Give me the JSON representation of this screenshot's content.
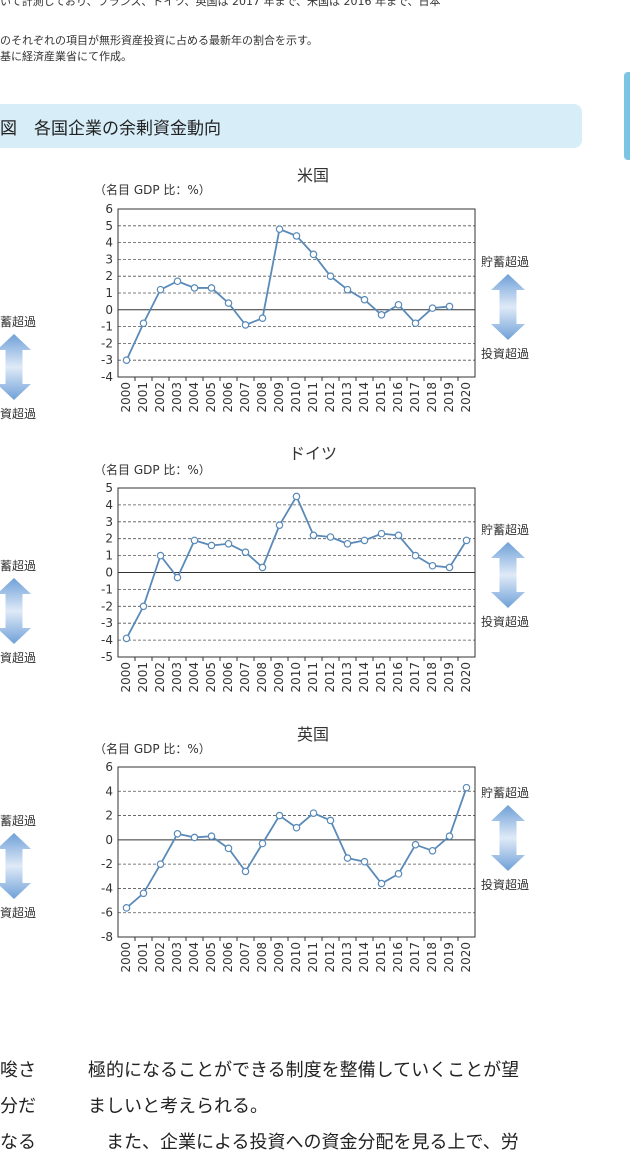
{
  "notes": {
    "line1": "いて計測しており、フランス、ドイツ、英国は 2017 年まで、米国は 2016 年まで、日本",
    "line2": "のそれぞれの項目が無形資産投資に占める最新年の割合を示す。",
    "line3": "基に経済産業省にて作成。"
  },
  "figure_caption": "図　各国企業の余剰資金動向",
  "side_labels": {
    "savings": "貯蓄超過",
    "investment": "投資超過",
    "savings_cut": "蓄超過",
    "investment_cut": "資超過"
  },
  "body_text": {
    "left1": "唆さ",
    "left2": "分だ",
    "left3": "なる",
    "right1": "極的になることができる制度を整備していくことが望",
    "right2": "ましいと考えられる。",
    "right3": "また、企業による投資への資金分配を見る上で、労"
  },
  "colors": {
    "line": "#5a8ab8",
    "arrow": "#6fa0d8",
    "caption_bg": "#d7eef8"
  },
  "chart_data": [
    {
      "type": "line",
      "title": "米国",
      "ylabel": "（名目 GDP 比：%）",
      "categories": [
        "2000",
        "2001",
        "2002",
        "2003",
        "2004",
        "2005",
        "2006",
        "2007",
        "2008",
        "2009",
        "2010",
        "2011",
        "2012",
        "2013",
        "2014",
        "2015",
        "2016",
        "2017",
        "2018",
        "2019",
        "2020"
      ],
      "values": [
        -3.0,
        -0.8,
        1.2,
        1.7,
        1.3,
        1.3,
        0.4,
        -0.9,
        -0.5,
        4.8,
        4.4,
        3.3,
        2.0,
        1.2,
        0.6,
        -0.3,
        0.3,
        -0.8,
        0.1,
        0.2,
        null
      ],
      "ylim": [
        -4,
        6
      ],
      "yticks": [
        6,
        5,
        4,
        3,
        2,
        1,
        0,
        -1,
        -2,
        -3,
        -4
      ],
      "grid": "dashed-horizontal"
    },
    {
      "type": "line",
      "title": "ドイツ",
      "ylabel": "（名目 GDP 比：%）",
      "categories": [
        "2000",
        "2001",
        "2002",
        "2003",
        "2004",
        "2005",
        "2006",
        "2007",
        "2008",
        "2009",
        "2010",
        "2011",
        "2012",
        "2013",
        "2014",
        "2015",
        "2016",
        "2017",
        "2018",
        "2019",
        "2020"
      ],
      "values": [
        -3.9,
        -2.0,
        1.0,
        -0.3,
        1.9,
        1.6,
        1.7,
        1.2,
        0.3,
        2.8,
        4.5,
        2.2,
        2.1,
        1.7,
        1.9,
        2.3,
        2.2,
        1.0,
        0.4,
        0.3,
        1.9
      ],
      "ylim": [
        -5,
        5
      ],
      "yticks": [
        5,
        4,
        3,
        2,
        1,
        0,
        -1,
        -2,
        -3,
        -4,
        -5
      ],
      "grid": "dashed-horizontal"
    },
    {
      "type": "line",
      "title": "英国",
      "ylabel": "（名目 GDP 比：%）",
      "categories": [
        "2000",
        "2001",
        "2002",
        "2003",
        "2004",
        "2005",
        "2006",
        "2007",
        "2008",
        "2009",
        "2010",
        "2011",
        "2012",
        "2013",
        "2014",
        "2015",
        "2016",
        "2017",
        "2018",
        "2019",
        "2020"
      ],
      "values": [
        -5.6,
        -4.4,
        -2.0,
        0.5,
        0.2,
        0.3,
        -0.7,
        -2.6,
        -0.3,
        2.0,
        1.0,
        2.2,
        1.6,
        -1.5,
        -1.8,
        -3.6,
        -2.8,
        -0.4,
        -0.9,
        0.3,
        4.3
      ],
      "ylim": [
        -8,
        6
      ],
      "yticks": [
        6,
        4,
        2,
        0,
        -2,
        -4,
        -6,
        -8
      ],
      "grid": "dashed-horizontal"
    }
  ]
}
